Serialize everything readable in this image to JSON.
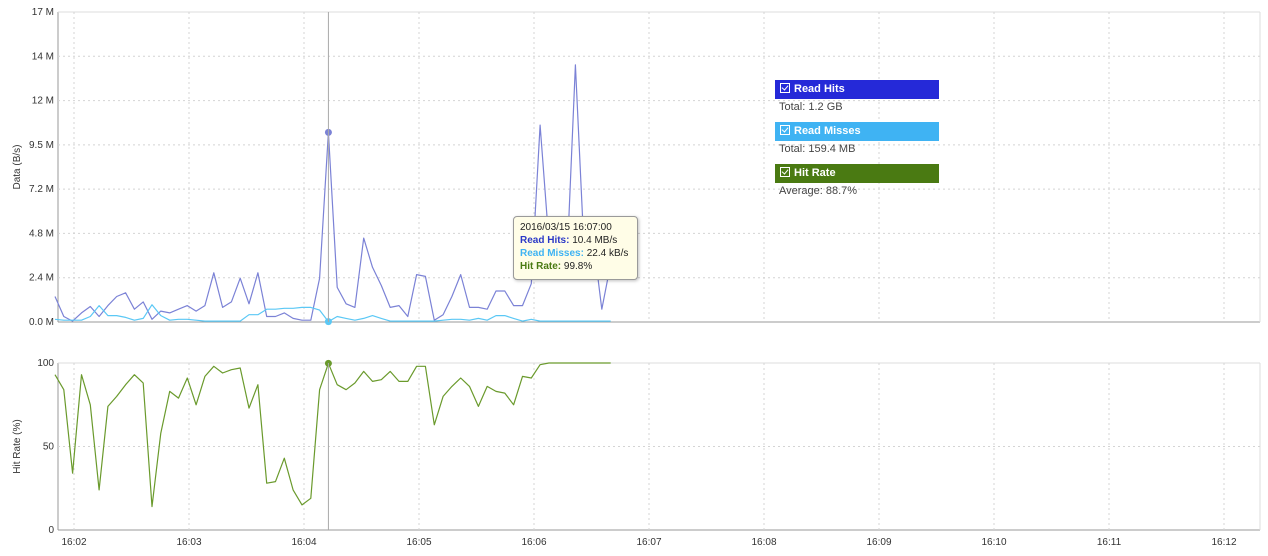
{
  "chart_data": [
    {
      "type": "line",
      "ylabel": "Data (B/s)",
      "y_ticks": [
        "17 M",
        "14 M",
        "12 M",
        "9.5 M",
        "7.2 M",
        "4.8 M",
        "2.4 M",
        "0.0 M"
      ],
      "ylim": [
        0,
        17
      ],
      "y_unit": "M",
      "series": [
        {
          "name": "Read Hits",
          "color": "#7b82d6",
          "values": [
            1.4,
            0.3,
            0.05,
            0.5,
            0.85,
            0.3,
            0.9,
            1.4,
            1.6,
            0.7,
            1.1,
            0.15,
            0.6,
            0.5,
            0.7,
            0.9,
            0.6,
            0.9,
            2.7,
            0.8,
            1.1,
            2.4,
            1.0,
            2.7,
            0.3,
            0.3,
            0.5,
            0.2,
            0.1,
            0.1,
            2.4,
            10.4,
            1.9,
            1.0,
            0.8,
            4.6,
            3.0,
            2.0,
            0.8,
            0.9,
            0.3,
            2.6,
            2.5,
            0.1,
            0.4,
            1.4,
            2.6,
            0.8,
            0.8,
            0.7,
            1.7,
            1.7,
            0.9,
            0.9,
            2.1,
            10.8,
            4.4,
            2.5,
            2.8,
            14.1,
            3.8,
            4.6,
            0.7,
            3.2
          ]
        },
        {
          "name": "Read Misses",
          "color": "#5bc8f5",
          "values": [
            0.15,
            0.1,
            0.1,
            0.1,
            0.3,
            0.9,
            0.35,
            0.35,
            0.25,
            0.1,
            0.2,
            0.95,
            0.35,
            0.1,
            0.15,
            0.15,
            0.1,
            0.05,
            0.05,
            0.05,
            0.05,
            0.05,
            0.4,
            0.4,
            0.7,
            0.7,
            0.75,
            0.75,
            0.8,
            0.8,
            0.65,
            0.02,
            0.3,
            0.2,
            0.1,
            0.2,
            0.35,
            0.2,
            0.05,
            0.05,
            0.05,
            0.05,
            0.05,
            0.05,
            0.1,
            0.15,
            0.15,
            0.1,
            0.2,
            0.1,
            0.35,
            0.35,
            0.2,
            0.05,
            0.15,
            0.05,
            0.05,
            0.05,
            0.05,
            0.05,
            0.05,
            0.05,
            0.05,
            0.05
          ]
        }
      ],
      "highlight_index": 31
    },
    {
      "type": "line",
      "ylabel": "Hit Rate (%)",
      "y_ticks": [
        "100",
        "50",
        "0"
      ],
      "ylim": [
        0,
        100
      ],
      "x_ticks": [
        "16:02",
        "16:03",
        "16:04",
        "16:05",
        "16:06",
        "16:07",
        "16:08",
        "16:09",
        "16:10",
        "16:11",
        "16:12"
      ],
      "series": [
        {
          "name": "Hit Rate",
          "color": "#6a9a2c",
          "values": [
            93,
            84,
            34,
            93,
            75,
            24,
            74,
            80,
            87,
            93,
            88,
            14,
            58,
            83,
            79,
            91,
            75,
            92,
            98,
            94,
            96,
            97,
            73,
            87,
            28,
            29,
            43,
            24,
            15,
            19,
            84,
            99.8,
            87,
            84,
            88,
            95,
            89,
            90,
            95,
            89,
            89,
            98,
            98,
            63,
            80,
            86,
            91,
            86,
            74,
            86,
            83,
            82,
            75,
            92,
            91,
            99,
            100,
            100,
            100,
            100,
            100,
            100,
            100,
            100
          ]
        }
      ],
      "highlight_index": 31
    }
  ],
  "legend": [
    {
      "name": "Read Hits",
      "summary": "Total: 1.2 GB",
      "color": "#2529d8"
    },
    {
      "name": "Read Misses",
      "summary": "Total: 159.4 MB",
      "color": "#3fb3f3"
    },
    {
      "name": "Hit Rate",
      "summary": "Average: 88.7%",
      "color": "#4a7a12"
    }
  ],
  "tooltip": {
    "time": "2016/03/15 16:07:00",
    "rows": [
      {
        "label": "Read Hits:",
        "value": "10.4 MB/s",
        "color": "#2b39c7"
      },
      {
        "label": "Read Misses:",
        "value": "22.4 kB/s",
        "color": "#3fb3f3"
      },
      {
        "label": "Hit Rate:",
        "value": "99.8%",
        "color": "#4a7a12"
      }
    ]
  }
}
